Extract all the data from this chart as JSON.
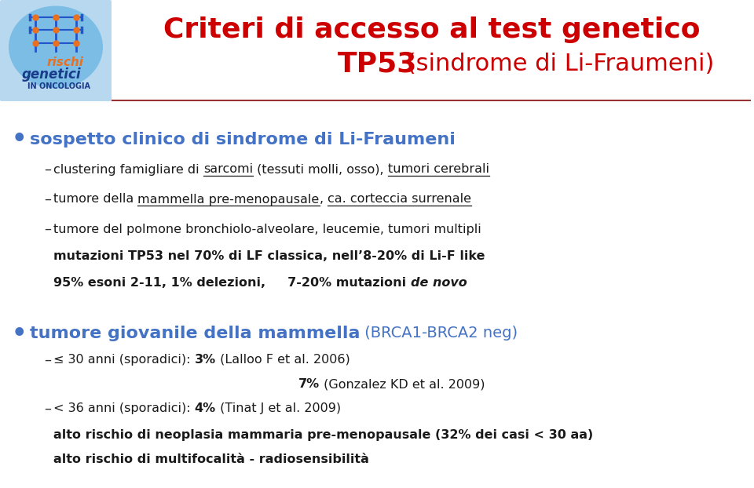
{
  "title_line1": "Criteri di accesso al test genetico",
  "title_line2_bold": "TP53",
  "title_line2_normal": " (sindrome di Li-Fraumeni)",
  "title_color": "#cc0000",
  "bg_color": "#ffffff",
  "separator_color": "#993333",
  "bullet_color": "#4472c4",
  "text_color": "#1a1a1a",
  "dash_color": "#333333",
  "bullet1_text": "sospetto clinico di sindrome di Li-Fraumeni",
  "sub1_1_parts": [
    [
      "clustering famigliare di ",
      false
    ],
    [
      "sarcomi",
      true
    ],
    [
      " (tessuti molli, osso), ",
      false
    ],
    [
      "tumori cerebrali",
      true
    ]
  ],
  "sub1_2_parts": [
    [
      "tumore della ",
      false
    ],
    [
      "mammella pre-menopausale",
      true
    ],
    [
      ", ",
      false
    ],
    [
      "ca. corteccia surrenale",
      true
    ]
  ],
  "sub1_3": "tumore del polmone bronchiolo-alveolare, leucemie, tumori multipli",
  "bold1": "mutazioni TP53 nel 70% di LF classica, nell’8-20% di Li-F like",
  "bold2_p1": "95% esoni 2-11, 1% delezioni,",
  "bold2_p2": "     7-20% mutazioni ",
  "bold2_italic": "de novo",
  "bullet2_bold": "tumore giovanile della mammella",
  "bullet2_normal": " (BRCA1-BRCA2 neg)",
  "sub2_1_parts": [
    [
      "≤ 30 anni (sporadici): ",
      false
    ],
    [
      "3%",
      true
    ],
    [
      " (Lalloo F et al. 2006)",
      false
    ]
  ],
  "sub2_1b_parts": [
    [
      "7%",
      true
    ],
    [
      " (Gonzalez KD et al. 2009)",
      false
    ]
  ],
  "sub2_2_parts": [
    [
      "< 36 anni (sporadici): ",
      false
    ],
    [
      "4%",
      true
    ],
    [
      " (Tinat J et al. 2009)",
      false
    ]
  ],
  "footer1": "alto rischio di neoplasia mammaria pre-menopausale (32% dei casi < 30 aa)",
  "footer2": "alto rischio di multifocalità - radiosensibilità"
}
